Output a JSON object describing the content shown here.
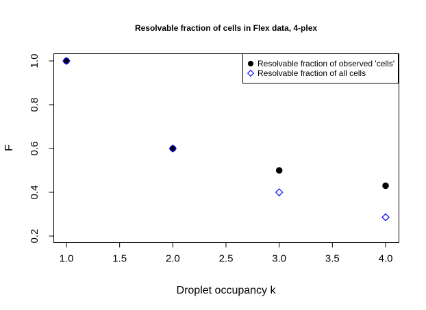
{
  "chart_data": {
    "type": "scatter",
    "title": "Resolvable fraction of cells in Flex data, 4-plex",
    "xlabel": "Droplet occupancy k",
    "ylabel": "F",
    "xlim": [
      1.0,
      4.0
    ],
    "ylim": [
      0.2,
      1.0
    ],
    "xticks": [
      "1.0",
      "1.5",
      "2.0",
      "2.5",
      "3.0",
      "3.5",
      "4.0"
    ],
    "xtick_values": [
      1.0,
      1.5,
      2.0,
      2.5,
      3.0,
      3.5,
      4.0
    ],
    "yticks": [
      "0.2",
      "0.4",
      "0.6",
      "0.8",
      "1.0"
    ],
    "ytick_values": [
      0.2,
      0.4,
      0.6,
      0.8,
      1.0
    ],
    "grid": false,
    "legend_position": "top-right",
    "series": [
      {
        "name": "Resolvable fraction of observed 'cells'",
        "marker": "filled-circle",
        "color": "#000000",
        "x": [
          1.0,
          2.0,
          3.0,
          4.0
        ],
        "y": [
          1.0,
          0.6,
          0.5,
          0.43
        ]
      },
      {
        "name": "Resolvable fraction of all cells",
        "marker": "open-diamond",
        "color": "#0000ff",
        "x": [
          1.0,
          2.0,
          3.0,
          4.0
        ],
        "y": [
          1.0,
          0.6,
          0.4,
          0.286
        ]
      }
    ]
  }
}
